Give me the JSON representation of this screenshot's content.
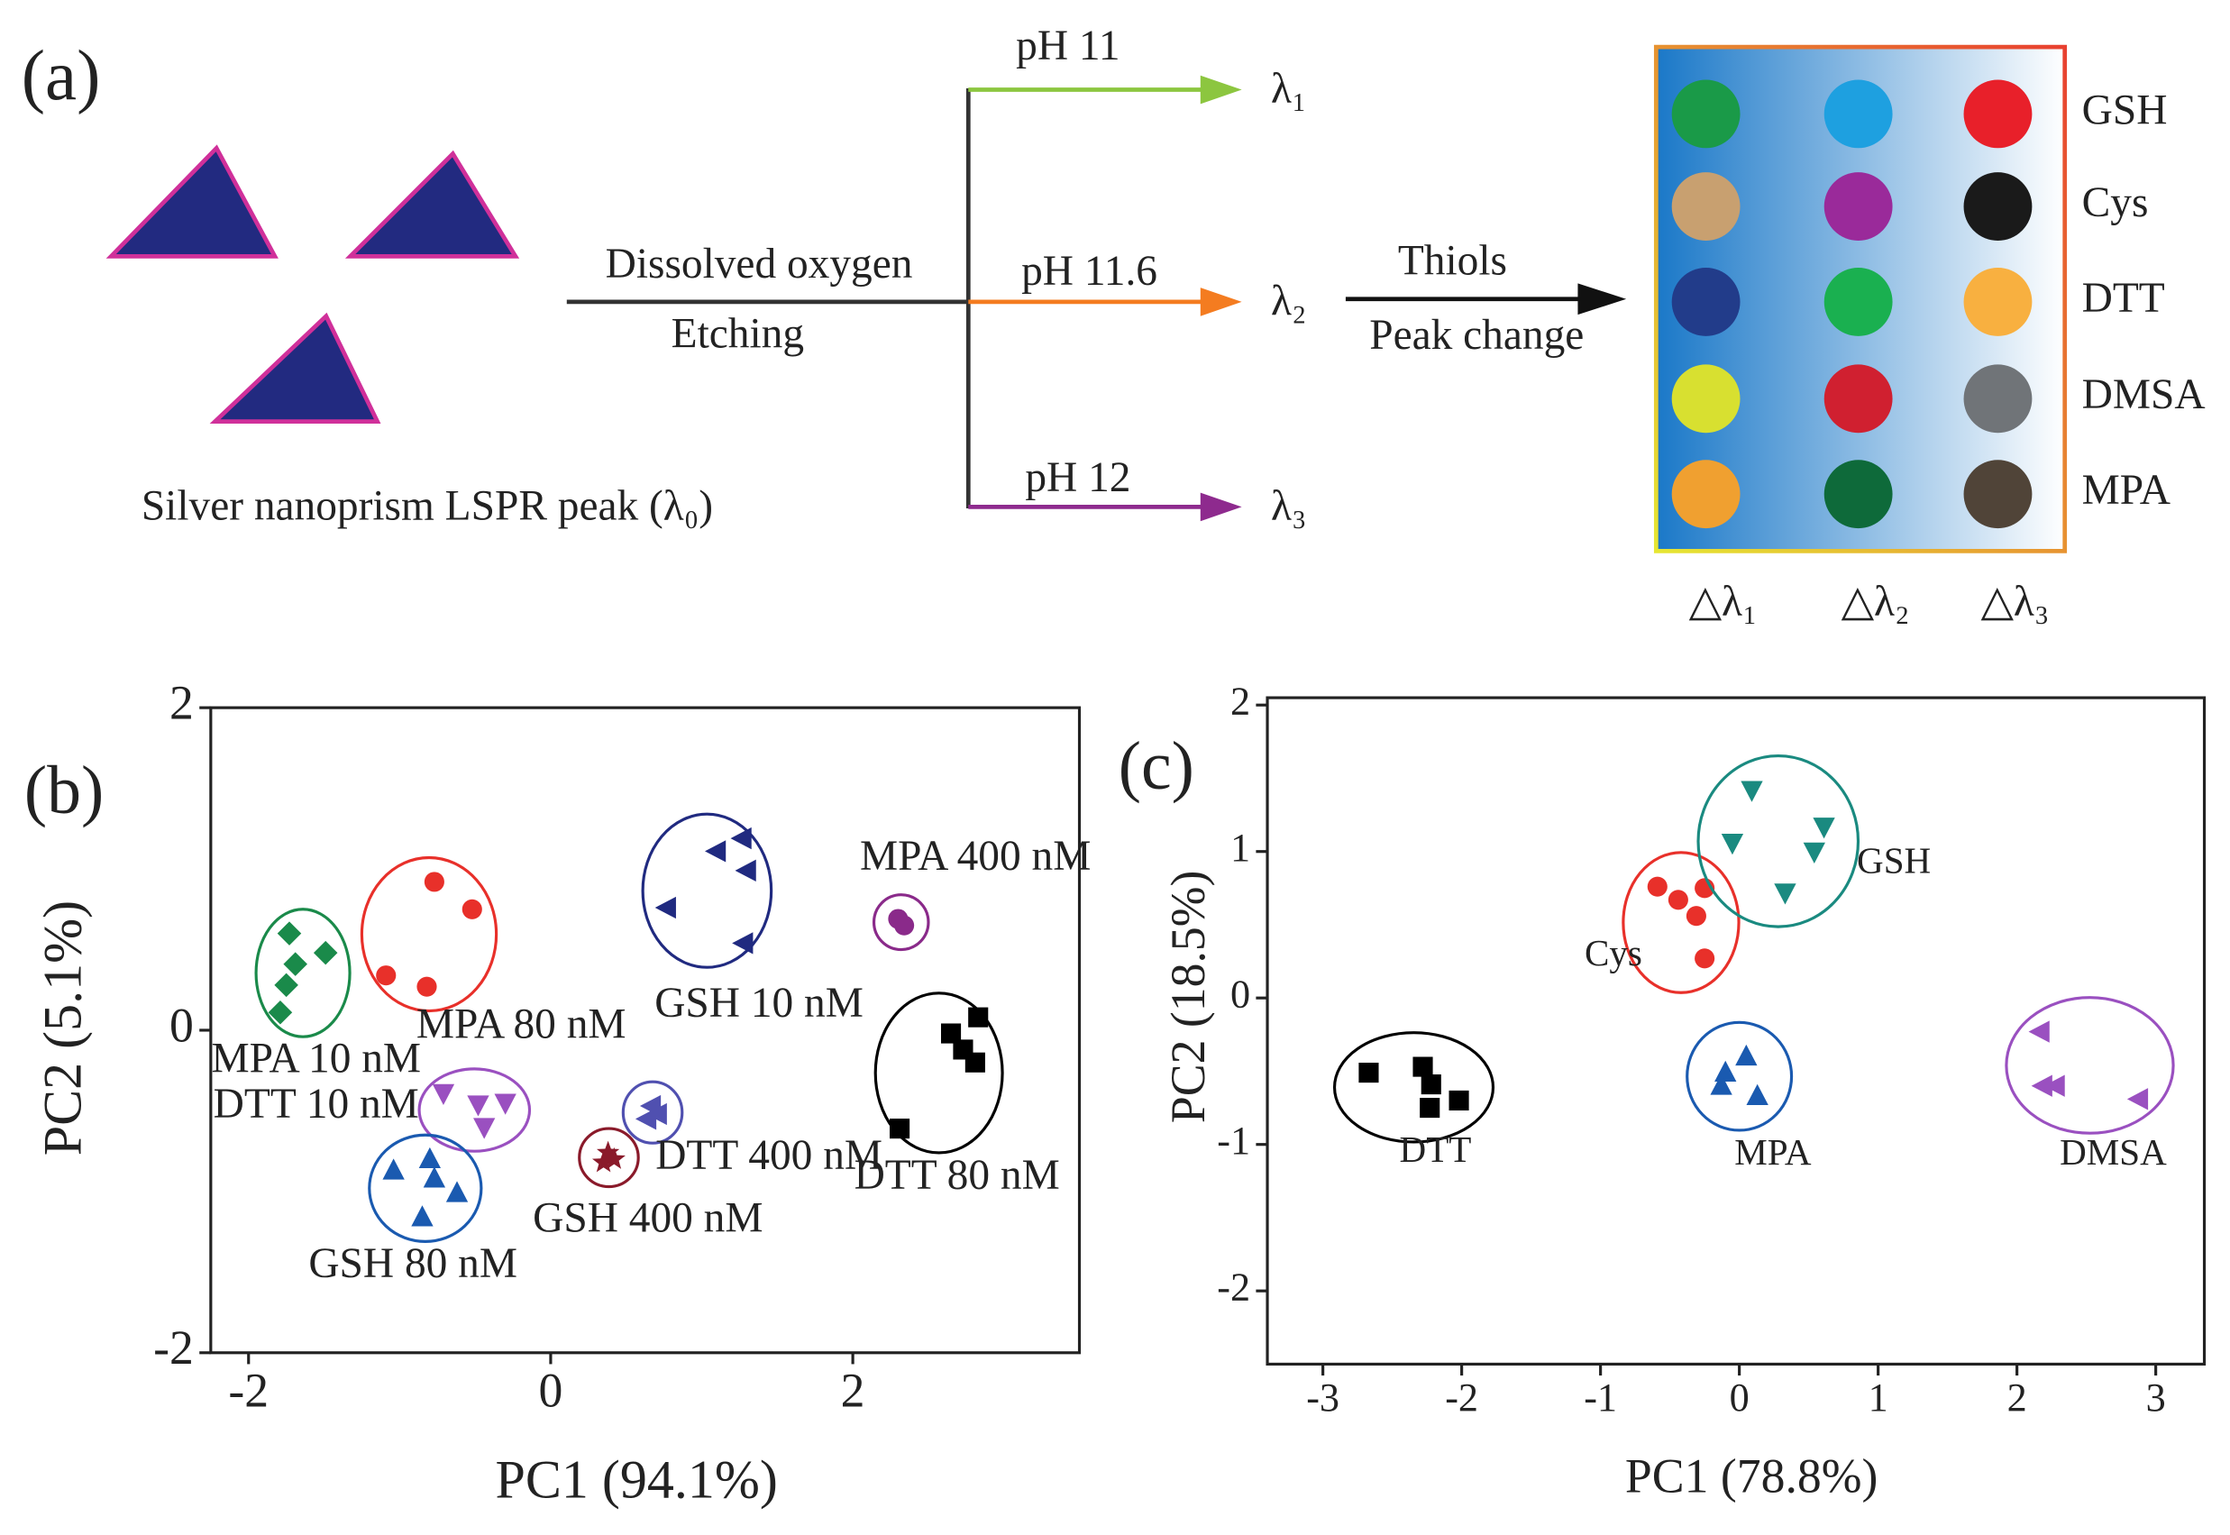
{
  "panel_a": {
    "label": "(a)",
    "caption": "Silver nanoprism LSPR peak (λ₀)",
    "etch_top": "Dissolved oxygen",
    "etch_bottom": "Etching",
    "branches": [
      {
        "ph": "pH 11",
        "peak": "λ₁",
        "color": "#8cc63f"
      },
      {
        "ph": "pH 11.6",
        "peak": "λ₂",
        "color": "#f47c20"
      },
      {
        "ph": "pH 12",
        "peak": "λ₃",
        "color": "#8e2a8e"
      }
    ],
    "step_top": "Thiols",
    "step_bottom": "Peak change",
    "array": {
      "rows": [
        "GSH",
        "Cys",
        "DTT",
        "DMSA",
        "MPA"
      ],
      "columns": [
        "△λ₁",
        "△λ₂",
        "△λ₃"
      ],
      "colors": [
        [
          "#1a9a48",
          "#1ea0e0",
          "#e8202a"
        ],
        [
          "#c8a070",
          "#9a2a9a",
          "#1a1a1a"
        ],
        [
          "#223c8a",
          "#1ab050",
          "#f8b040"
        ],
        [
          "#d8e030",
          "#d02030",
          "#707478"
        ],
        [
          "#f0a030",
          "#0e6a3a",
          "#504438"
        ]
      ]
    }
  },
  "chart_data": [
    {
      "type": "scatter",
      "panel_label": "(b)",
      "x_label": "PC1 (94.1%)",
      "y_label": "PC2 (5.1%)",
      "xlim": [
        -2.25,
        3.5
      ],
      "ylim": [
        -2,
        2
      ],
      "xticks": [
        -2,
        0,
        2
      ],
      "yticks": [
        -2,
        0,
        2
      ],
      "series": [
        {
          "name": "MPA 10 nM",
          "color": "#1a8a4a",
          "marker": "diamond",
          "x": [
            -1.73,
            -1.49,
            -1.69,
            -1.75,
            -1.79
          ],
          "values": [
            0.6,
            0.48,
            0.41,
            0.28,
            0.11
          ]
        },
        {
          "name": "MPA 80 nM",
          "color": "#e8302a",
          "marker": "circle",
          "x": [
            -0.77,
            -0.52,
            -1.09,
            -0.82
          ],
          "values": [
            0.92,
            0.75,
            0.34,
            0.27
          ]
        },
        {
          "name": "GSH 10 nM",
          "color": "#202a80",
          "marker": "tri-left",
          "x": [
            1.27,
            1.1,
            1.3,
            0.77,
            1.28
          ],
          "values": [
            1.19,
            1.11,
            0.99,
            0.76,
            0.54
          ]
        },
        {
          "name": "MPA 400 nM",
          "color": "#8a2a8a",
          "marker": "circle",
          "x": [
            2.3,
            2.34
          ],
          "values": [
            0.69,
            0.65
          ]
        },
        {
          "name": "DTT 80 nM",
          "color": "#000000",
          "marker": "square",
          "x": [
            2.83,
            2.65,
            2.73,
            2.81,
            2.31
          ],
          "values": [
            0.08,
            -0.02,
            -0.12,
            -0.2,
            -0.61
          ]
        },
        {
          "name": "DTT 10 nM",
          "color": "#9a50c0",
          "marker": "tri-down",
          "x": [
            -0.71,
            -0.48,
            -0.3,
            -0.44
          ],
          "values": [
            -0.39,
            -0.46,
            -0.45,
            -0.6
          ]
        },
        {
          "name": "DTT 400 nM",
          "color": "#5050b0",
          "marker": "tri-left",
          "x": [
            0.67,
            0.71,
            0.64
          ],
          "values": [
            -0.47,
            -0.52,
            -0.55
          ]
        },
        {
          "name": "GSH 400 nM",
          "color": "#8a1a2a",
          "marker": "star",
          "x": [
            0.38,
            0.42,
            0.35
          ],
          "values": [
            -0.76,
            -0.8,
            -0.82
          ]
        },
        {
          "name": "GSH 80 nM",
          "color": "#1a5ab0",
          "marker": "tri-up",
          "x": [
            -1.04,
            -0.8,
            -0.77,
            -0.62,
            -0.85
          ],
          "values": [
            -0.87,
            -0.8,
            -0.92,
            -1.01,
            -1.16
          ]
        }
      ]
    },
    {
      "type": "scatter",
      "panel_label": "(c)",
      "x_label": "PC1 (78.8%)",
      "y_label": "PC2 (18.5%)",
      "xlim": [
        -3.4,
        3.35
      ],
      "ylim": [
        -2.5,
        2.05
      ],
      "xticks": [
        -3,
        -2,
        -1,
        0,
        1,
        2,
        3
      ],
      "yticks": [
        -2,
        -1,
        0,
        1,
        2
      ],
      "series": [
        {
          "name": "DTT",
          "color": "#000000",
          "marker": "square",
          "x": [
            -2.67,
            -2.28,
            -2.22,
            -2.02,
            -2.23
          ],
          "values": [
            -0.51,
            -0.47,
            -0.59,
            -0.7,
            -0.75
          ]
        },
        {
          "name": "Cys",
          "color": "#e8302a",
          "marker": "circle",
          "x": [
            -0.59,
            -0.44,
            -0.25,
            -0.31,
            -0.25
          ],
          "values": [
            0.76,
            0.67,
            0.75,
            0.56,
            0.27
          ]
        },
        {
          "name": "GSH",
          "color": "#1a8a80",
          "marker": "tri-down",
          "x": [
            0.09,
            0.61,
            -0.05,
            0.54,
            0.33
          ],
          "values": [
            1.42,
            1.17,
            1.06,
            1.0,
            0.72
          ]
        },
        {
          "name": "MPA",
          "color": "#1a5ab0",
          "marker": "tri-up",
          "x": [
            -0.1,
            0.05,
            -0.13,
            0.13
          ],
          "values": [
            -0.51,
            -0.4,
            -0.6,
            -0.67
          ]
        },
        {
          "name": "DMSA",
          "color": "#9a50c0",
          "marker": "tri-left",
          "x": [
            2.17,
            2.28,
            2.19,
            2.88
          ],
          "values": [
            -0.23,
            -0.6,
            -0.6,
            -0.69
          ]
        }
      ]
    }
  ]
}
